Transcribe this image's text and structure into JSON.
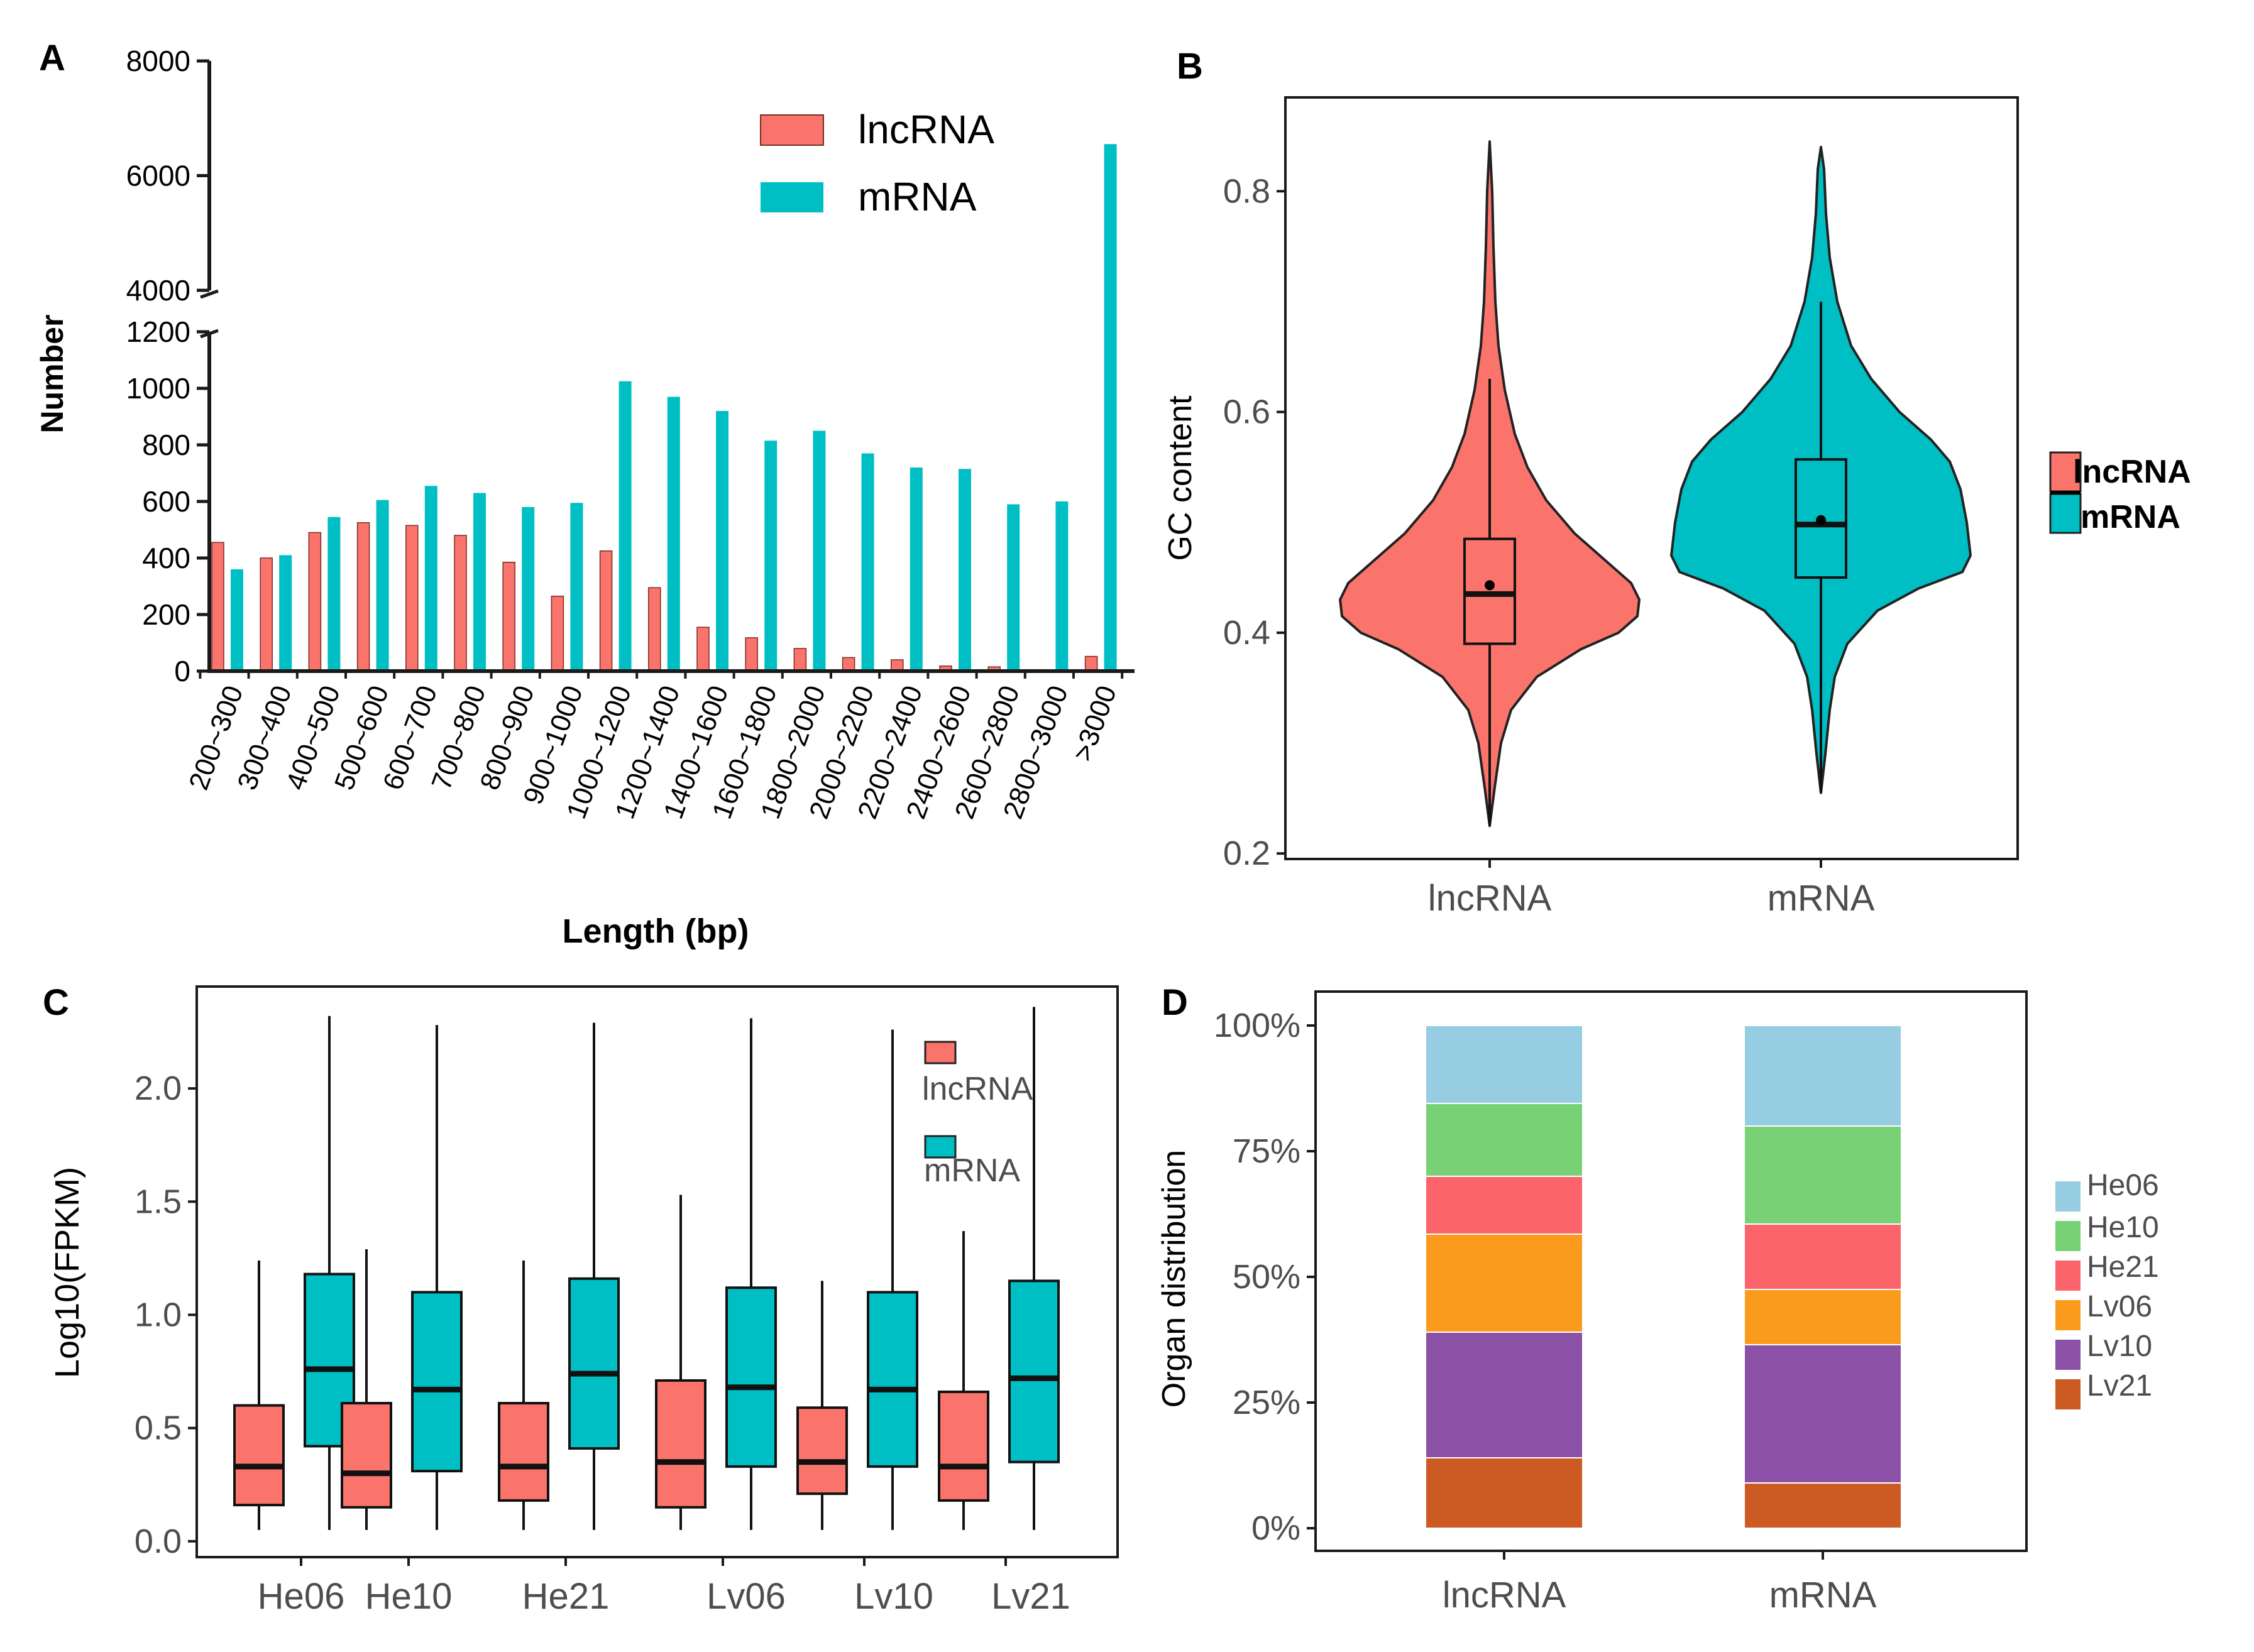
{
  "colors": {
    "lncrna": "#FA746C",
    "mrna": "#00BFC4",
    "axis": "#1a1a1a",
    "tick_text": "#4d4d4d",
    "he06": "#96CDE2",
    "he10": "#78D275",
    "he21": "#FA646A",
    "lv06": "#FB9B1E",
    "lv10": "#8A51A6",
    "lv21": "#CB5A23"
  },
  "chart_data": [
    {
      "panel": "A",
      "type": "bar",
      "xlabel": "Length (bp)",
      "ylabel": "Number",
      "legend": [
        "lncRNA",
        "mRNA"
      ],
      "categories": [
        "200~300",
        "300~400",
        "400~500",
        "500~600",
        "600~700",
        "700~800",
        "800~900",
        "900~1000",
        "1000~1200",
        "1200~1400",
        "1400~1600",
        "1600~1800",
        "1800~2000",
        "2000~2200",
        "2200~2400",
        "2400~2600",
        "2600~2800",
        "2800~3000",
        ">3000"
      ],
      "series": [
        {
          "name": "lncRNA",
          "values": [
            455,
            400,
            490,
            525,
            515,
            480,
            385,
            265,
            425,
            295,
            155,
            118,
            80,
            48,
            40,
            18,
            15,
            5,
            52
          ]
        },
        {
          "name": "mRNA",
          "values": [
            360,
            410,
            545,
            605,
            655,
            630,
            580,
            595,
            1025,
            970,
            920,
            815,
            850,
            770,
            720,
            715,
            590,
            600,
            6550
          ]
        }
      ],
      "y_ticks_lower": [
        "0",
        "200",
        "400",
        "600",
        "800",
        "1000",
        "1200"
      ],
      "y_ticks_upper": [
        "4000",
        "6000",
        "8000"
      ],
      "ylim_lower": [
        0,
        1200
      ],
      "ylim_upper": [
        4000,
        8000
      ]
    },
    {
      "panel": "B",
      "type": "violin",
      "ylabel": "GC content",
      "legend": [
        "lncRNA",
        "mRNA"
      ],
      "categories": [
        "lncRNA",
        "mRNA"
      ],
      "y_ticks": [
        "0.2",
        "0.4",
        "0.6",
        "0.8"
      ],
      "ylim": [
        0.195,
        0.885
      ],
      "groups": [
        {
          "name": "lncRNA",
          "min": 0.225,
          "q1": 0.39,
          "median": 0.435,
          "mean": 0.443,
          "q3": 0.485,
          "max": 0.63,
          "tail_max": 0.845
        },
        {
          "name": "mRNA",
          "min": 0.255,
          "q1": 0.45,
          "median": 0.498,
          "mean": 0.502,
          "q3": 0.557,
          "max": 0.7,
          "tail_max": 0.84
        }
      ]
    },
    {
      "panel": "C",
      "type": "boxplot",
      "ylabel": "Log10(FPKM)",
      "legend": [
        "lncRNA",
        "mRNA"
      ],
      "categories": [
        "He06",
        "He10",
        "He21",
        "Lv06",
        "Lv10",
        "Lv21"
      ],
      "y_ticks": [
        "0.0",
        "0.5",
        "1.0",
        "1.5",
        "2.0"
      ],
      "ylim": [
        -0.07,
        2.45
      ],
      "series": [
        {
          "name": "lncRNA",
          "boxes": [
            {
              "min": 0.05,
              "q1": 0.16,
              "median": 0.33,
              "q3": 0.6,
              "max": 1.24
            },
            {
              "min": 0.05,
              "q1": 0.15,
              "median": 0.3,
              "q3": 0.61,
              "max": 1.29
            },
            {
              "min": 0.05,
              "q1": 0.18,
              "median": 0.33,
              "q3": 0.61,
              "max": 1.24
            },
            {
              "min": 0.05,
              "q1": 0.15,
              "median": 0.35,
              "q3": 0.71,
              "max": 1.53
            },
            {
              "min": 0.05,
              "q1": 0.21,
              "median": 0.35,
              "q3": 0.59,
              "max": 1.15
            },
            {
              "min": 0.05,
              "q1": 0.18,
              "median": 0.33,
              "q3": 0.66,
              "max": 1.37
            }
          ]
        },
        {
          "name": "mRNA",
          "boxes": [
            {
              "min": 0.05,
              "q1": 0.42,
              "median": 0.76,
              "q3": 1.18,
              "max": 2.32
            },
            {
              "min": 0.05,
              "q1": 0.31,
              "median": 0.67,
              "q3": 1.1,
              "max": 2.28
            },
            {
              "min": 0.05,
              "q1": 0.41,
              "median": 0.74,
              "q3": 1.16,
              "max": 2.29
            },
            {
              "min": 0.05,
              "q1": 0.33,
              "median": 0.68,
              "q3": 1.12,
              "max": 2.31
            },
            {
              "min": 0.05,
              "q1": 0.33,
              "median": 0.67,
              "q3": 1.1,
              "max": 2.26
            },
            {
              "min": 0.05,
              "q1": 0.35,
              "median": 0.72,
              "q3": 1.15,
              "max": 2.36
            }
          ]
        }
      ]
    },
    {
      "panel": "D",
      "type": "stacked_bar",
      "ylabel": "Organ distribution",
      "categories": [
        "lncRNA",
        "mRNA"
      ],
      "y_ticks": [
        "0%",
        "25%",
        "50%",
        "75%",
        "100%"
      ],
      "legend": [
        "He06",
        "He10",
        "He21",
        "Lv06",
        "Lv10",
        "Lv21"
      ],
      "series": [
        {
          "name": "Lv21",
          "values": [
            14,
            9
          ]
        },
        {
          "name": "Lv10",
          "values": [
            25,
            27.5
          ]
        },
        {
          "name": "Lv06",
          "values": [
            19.5,
            11
          ]
        },
        {
          "name": "He21",
          "values": [
            11.5,
            13
          ]
        },
        {
          "name": "He10",
          "values": [
            14.5,
            19.5
          ]
        },
        {
          "name": "He06",
          "values": [
            15.5,
            20
          ]
        }
      ]
    }
  ],
  "panels": {
    "a": "A",
    "b": "B",
    "c": "C",
    "d": "D"
  }
}
